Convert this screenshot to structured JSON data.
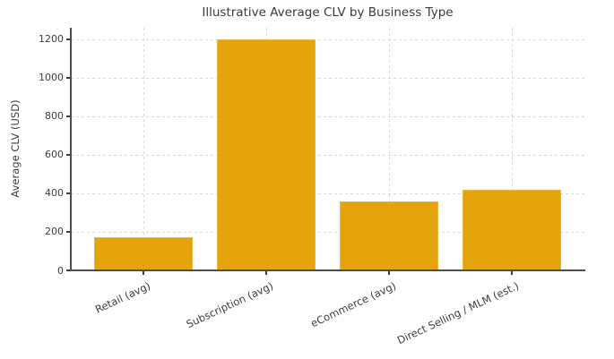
{
  "title": "Illustrative Average CLV by Business Type",
  "chart_data": {
    "type": "bar",
    "title": "Illustrative Average CLV by Business Type",
    "categories": [
      "Retail (avg)",
      "Subscription (avg)",
      "eCommerce (avg)",
      "Direct Selling / MLM (est.)"
    ],
    "values": [
      170,
      1200,
      360,
      420
    ],
    "xlabel": "",
    "ylabel": "Average CLV (USD)",
    "ylim": [
      0,
      1260
    ],
    "yticks": [
      0,
      200,
      400,
      600,
      800,
      1000,
      1200
    ],
    "grid": true,
    "grid_style": "dashed",
    "legend": "none",
    "bar_color": "#E5A40B",
    "text_color": "#3d3d3d",
    "grid_color": "#d9d9d9",
    "axis_color": "#4d4d4d",
    "xtick_label_rotation_deg": 25,
    "bar_width_fraction": 0.8
  }
}
